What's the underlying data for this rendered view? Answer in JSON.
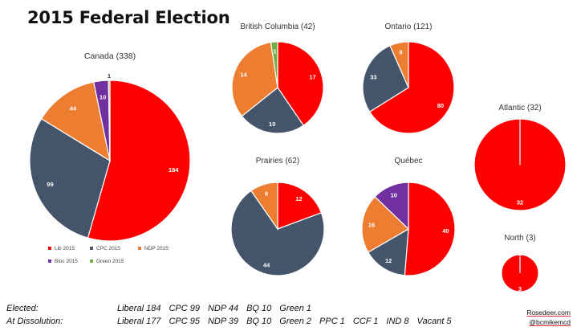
{
  "title": "2015 Federal Election",
  "colors": {
    "lib": "#ff0000",
    "cpc": "#44546a",
    "ndp": "#ed7d31",
    "bloc": "#7030a0",
    "green": "#70ad47"
  },
  "chart_data": [
    {
      "type": "pie",
      "title": "Canada (338)",
      "slices": [
        {
          "party": "lib",
          "value": 184
        },
        {
          "party": "cpc",
          "value": 99
        },
        {
          "party": "ndp",
          "value": 44
        },
        {
          "party": "bloc",
          "value": 10
        },
        {
          "party": "green",
          "value": 1
        }
      ]
    },
    {
      "type": "pie",
      "title": "British Columbia (42)",
      "slices": [
        {
          "party": "lib",
          "value": 17
        },
        {
          "party": "cpc",
          "value": 10
        },
        {
          "party": "ndp",
          "value": 14
        },
        {
          "party": "green",
          "value": 1
        }
      ]
    },
    {
      "type": "pie",
      "title": "Ontario (121)",
      "slices": [
        {
          "party": "lib",
          "value": 80
        },
        {
          "party": "cpc",
          "value": 33
        },
        {
          "party": "ndp",
          "value": 8
        }
      ]
    },
    {
      "type": "pie",
      "title": "Prairies (62)",
      "slices": [
        {
          "party": "lib",
          "value": 12
        },
        {
          "party": "cpc",
          "value": 44
        },
        {
          "party": "ndp",
          "value": 6
        }
      ]
    },
    {
      "type": "pie",
      "title": "Québec",
      "slices": [
        {
          "party": "lib",
          "value": 40
        },
        {
          "party": "cpc",
          "value": 12
        },
        {
          "party": "ndp",
          "value": 16
        },
        {
          "party": "bloc",
          "value": 10
        }
      ]
    },
    {
      "type": "pie",
      "title": "Atlantic (32)",
      "slices": [
        {
          "party": "lib",
          "value": 32
        }
      ]
    },
    {
      "type": "pie",
      "title": "North (3)",
      "slices": [
        {
          "party": "lib",
          "value": 3
        }
      ]
    }
  ],
  "legend": [
    {
      "party": "lib",
      "label": "Lib 2015"
    },
    {
      "party": "cpc",
      "label": "CPC 2015"
    },
    {
      "party": "ndp",
      "label": "NDP 2015"
    },
    {
      "party": "bloc",
      "label": "Bloc 2015"
    },
    {
      "party": "green",
      "label": "Green 2015"
    }
  ],
  "footer": {
    "elected": {
      "label": "Elected:",
      "parties": [
        "Liberal 184",
        "CPC 99",
        "NDP 44",
        "BQ 10",
        "Green 1"
      ]
    },
    "dissolution": {
      "label": "At Dissolution:",
      "parties": [
        "Liberal 177",
        "CPC 95",
        "NDP 39",
        "BQ 10",
        "Green 2",
        "PPC 1",
        "CCF 1",
        "IND 8",
        "Vacant 5"
      ]
    }
  },
  "credits": {
    "site": "Rosedeer.com",
    "handle": "@bcmikemcd"
  }
}
